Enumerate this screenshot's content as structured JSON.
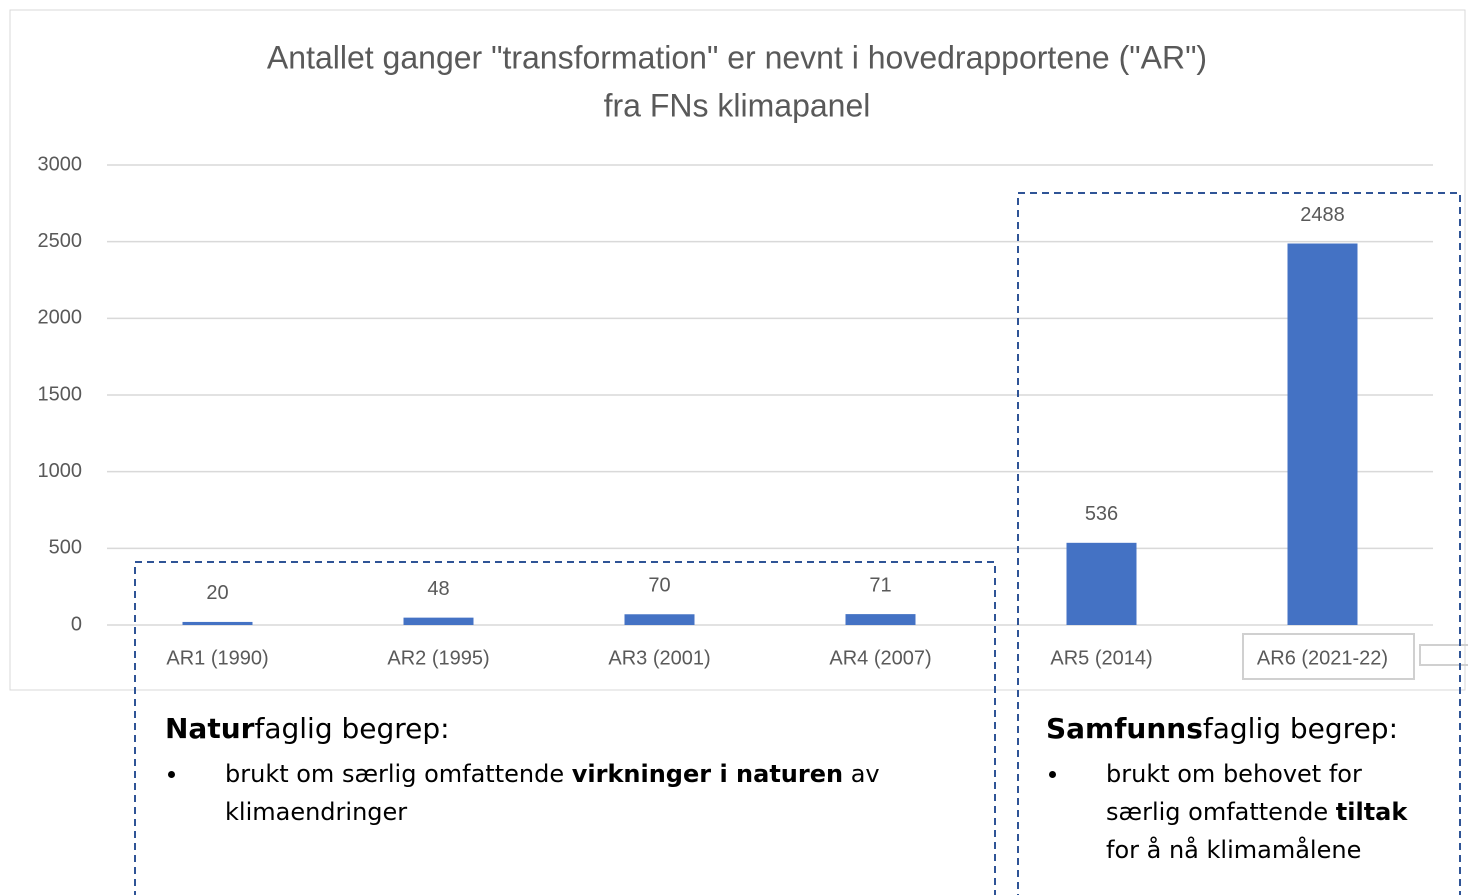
{
  "chart_data": {
    "type": "bar",
    "title": [
      "Antallet ganger \"transformation\" er nevnt i hovedrapportene (\"AR\")",
      "fra FNs klimapanel"
    ],
    "categories": [
      "AR1 (1990)",
      "AR2 (1995)",
      "AR3 (2001)",
      "AR4 (2007)",
      "AR5 (2014)",
      "AR6 (2021-22)"
    ],
    "values": [
      20,
      48,
      70,
      71,
      536,
      2488
    ],
    "color": "#4472c4",
    "ylim": [
      0,
      3000
    ],
    "yticks": [
      0,
      500,
      1000,
      1500,
      2000,
      2500,
      3000
    ],
    "grid": true
  },
  "annotations": [
    {
      "heading": [
        "Natur",
        "faglig begrep:"
      ],
      "bullet": [
        "brukt om særlig omfattende ",
        "virkninger i naturen",
        " av klimaendringer"
      ]
    },
    {
      "heading": [
        "Samfunns",
        "faglig begrep:"
      ],
      "bullet": [
        "brukt om behovet for særlig omfattende ",
        "tiltak",
        " for å nå klimamålene"
      ]
    }
  ]
}
